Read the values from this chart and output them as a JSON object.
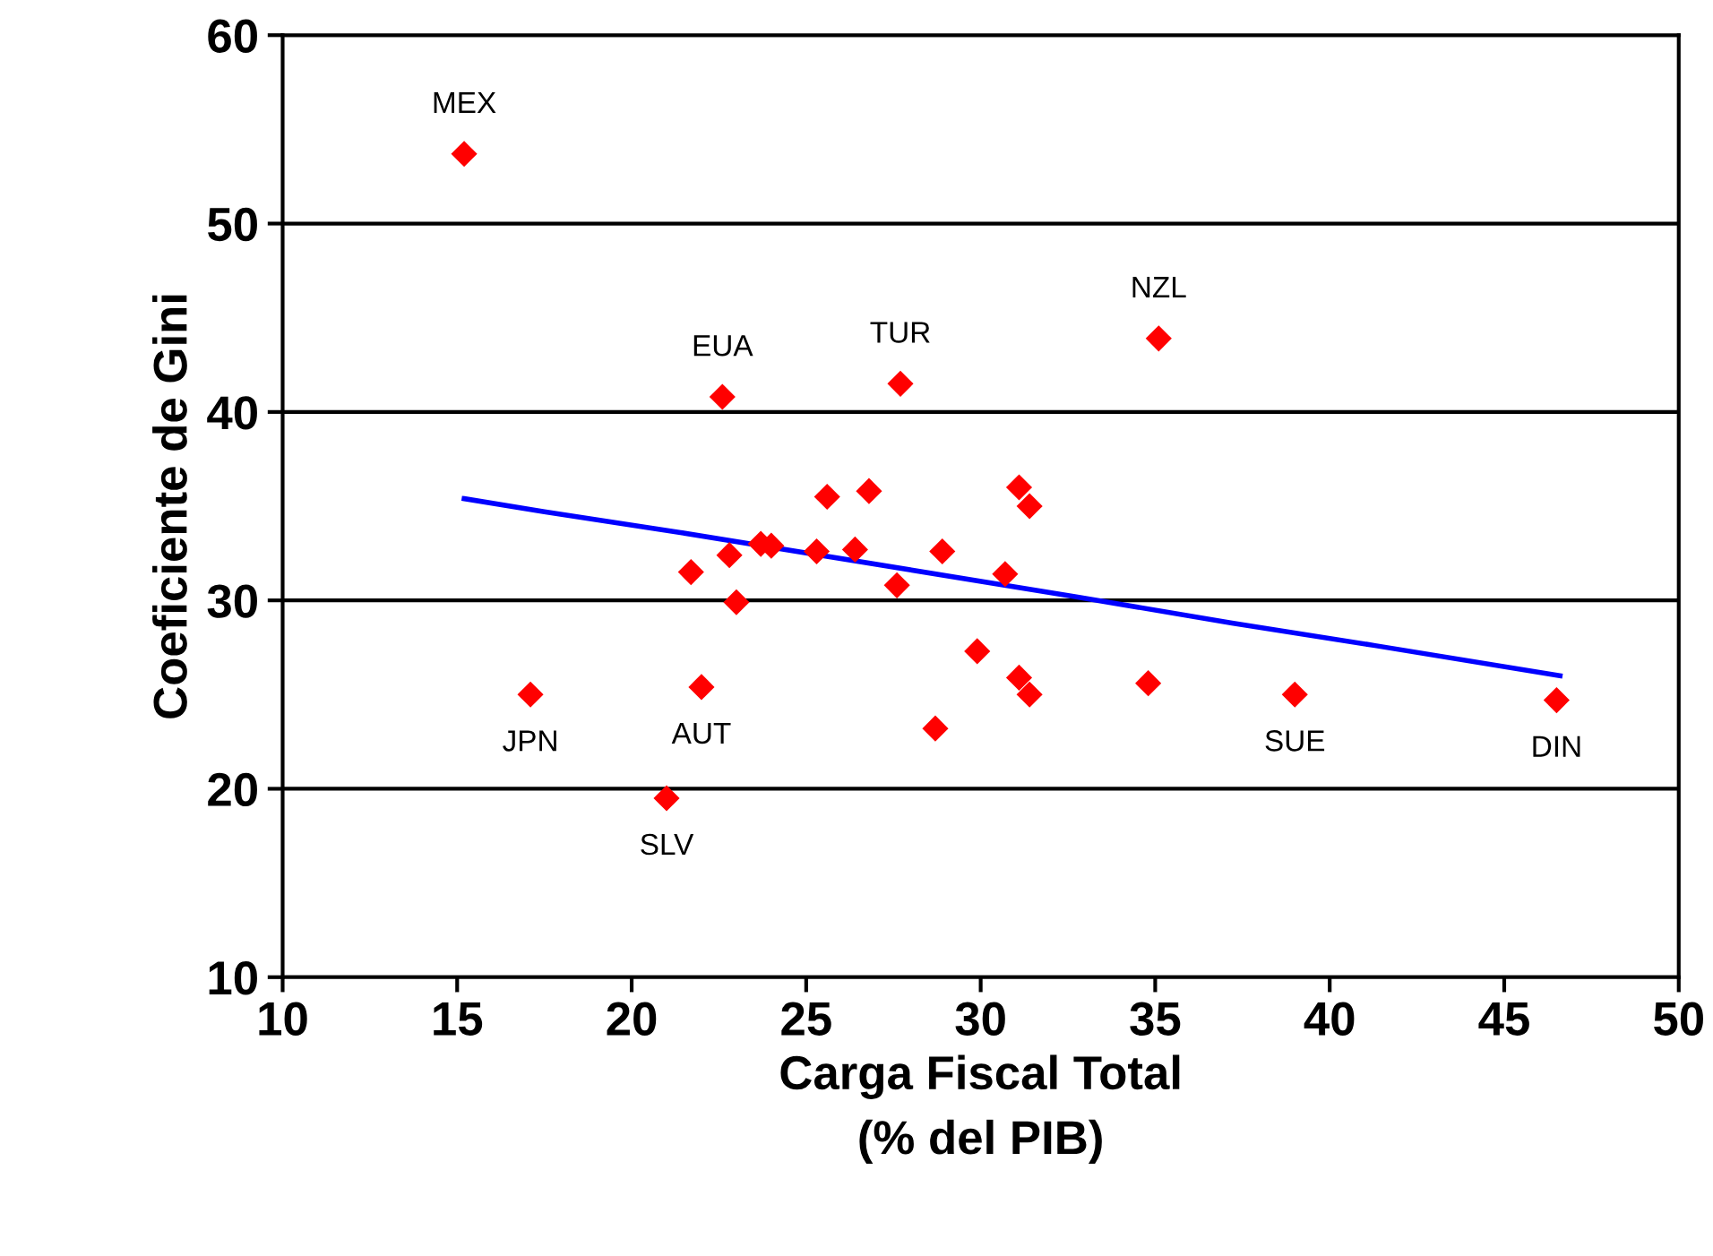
{
  "chart_data": {
    "type": "scatter",
    "xlabel": "Carga Fiscal Total\n(% del PIB)",
    "ylabel": "Coeficiente de Gini",
    "xlim": [
      10,
      50
    ],
    "xticks": [
      10,
      15,
      20,
      25,
      30,
      35,
      40,
      45,
      50
    ],
    "ylim": [
      10,
      60
    ],
    "yticks": [
      10,
      20,
      30,
      40,
      50,
      60
    ],
    "grid": "y",
    "legend": false,
    "series": [
      {
        "color": "#ff0000",
        "marker": "diamond",
        "x": [
          15.2,
          22.6,
          27.7,
          35.1,
          17.1,
          22.0,
          21.0,
          21.7,
          22.8,
          23.0,
          23.7,
          24.0,
          25.3,
          25.6,
          26.4,
          26.8,
          27.6,
          28.9,
          28.7,
          29.9,
          30.7,
          31.1,
          31.4,
          31.1,
          31.4,
          34.8,
          39.0,
          46.5
        ],
        "values": [
          53.7,
          40.8,
          41.5,
          43.9,
          25.0,
          25.4,
          19.5,
          31.5,
          32.4,
          29.9,
          33.0,
          32.9,
          32.6,
          35.5,
          32.7,
          35.8,
          30.8,
          32.6,
          23.2,
          27.3,
          31.4,
          36.0,
          35.0,
          25.9,
          25.0,
          25.6,
          25.0,
          24.7
        ]
      },
      {
        "type": "line",
        "color": "#0000ff",
        "marker": "none",
        "line_style": "solid",
        "x": [
          15.2,
          17.5,
          21.4,
          32.7,
          37.2,
          41.3,
          46.6
        ],
        "values": [
          35.4,
          34.7,
          33.6,
          30.2,
          28.8,
          27.6,
          26.0
        ]
      }
    ],
    "annotations": [
      {
        "text": "MEX",
        "x": 15.2,
        "y": 53.7
      },
      {
        "text": "EUA",
        "x": 22.6,
        "y": 40.8
      },
      {
        "text": "TUR",
        "x": 27.7,
        "y": 41.5
      },
      {
        "text": "NZL",
        "x": 35.1,
        "y": 43.9
      },
      {
        "text": "JPN",
        "x": 17.1,
        "y": 25.0
      },
      {
        "text": "AUT",
        "x": 22.0,
        "y": 25.4
      },
      {
        "text": "SLV",
        "x": 21.0,
        "y": 19.5
      },
      {
        "text": "SUE",
        "x": 39.0,
        "y": 25.0
      },
      {
        "text": "DIN",
        "x": 46.5,
        "y": 24.7
      }
    ]
  }
}
